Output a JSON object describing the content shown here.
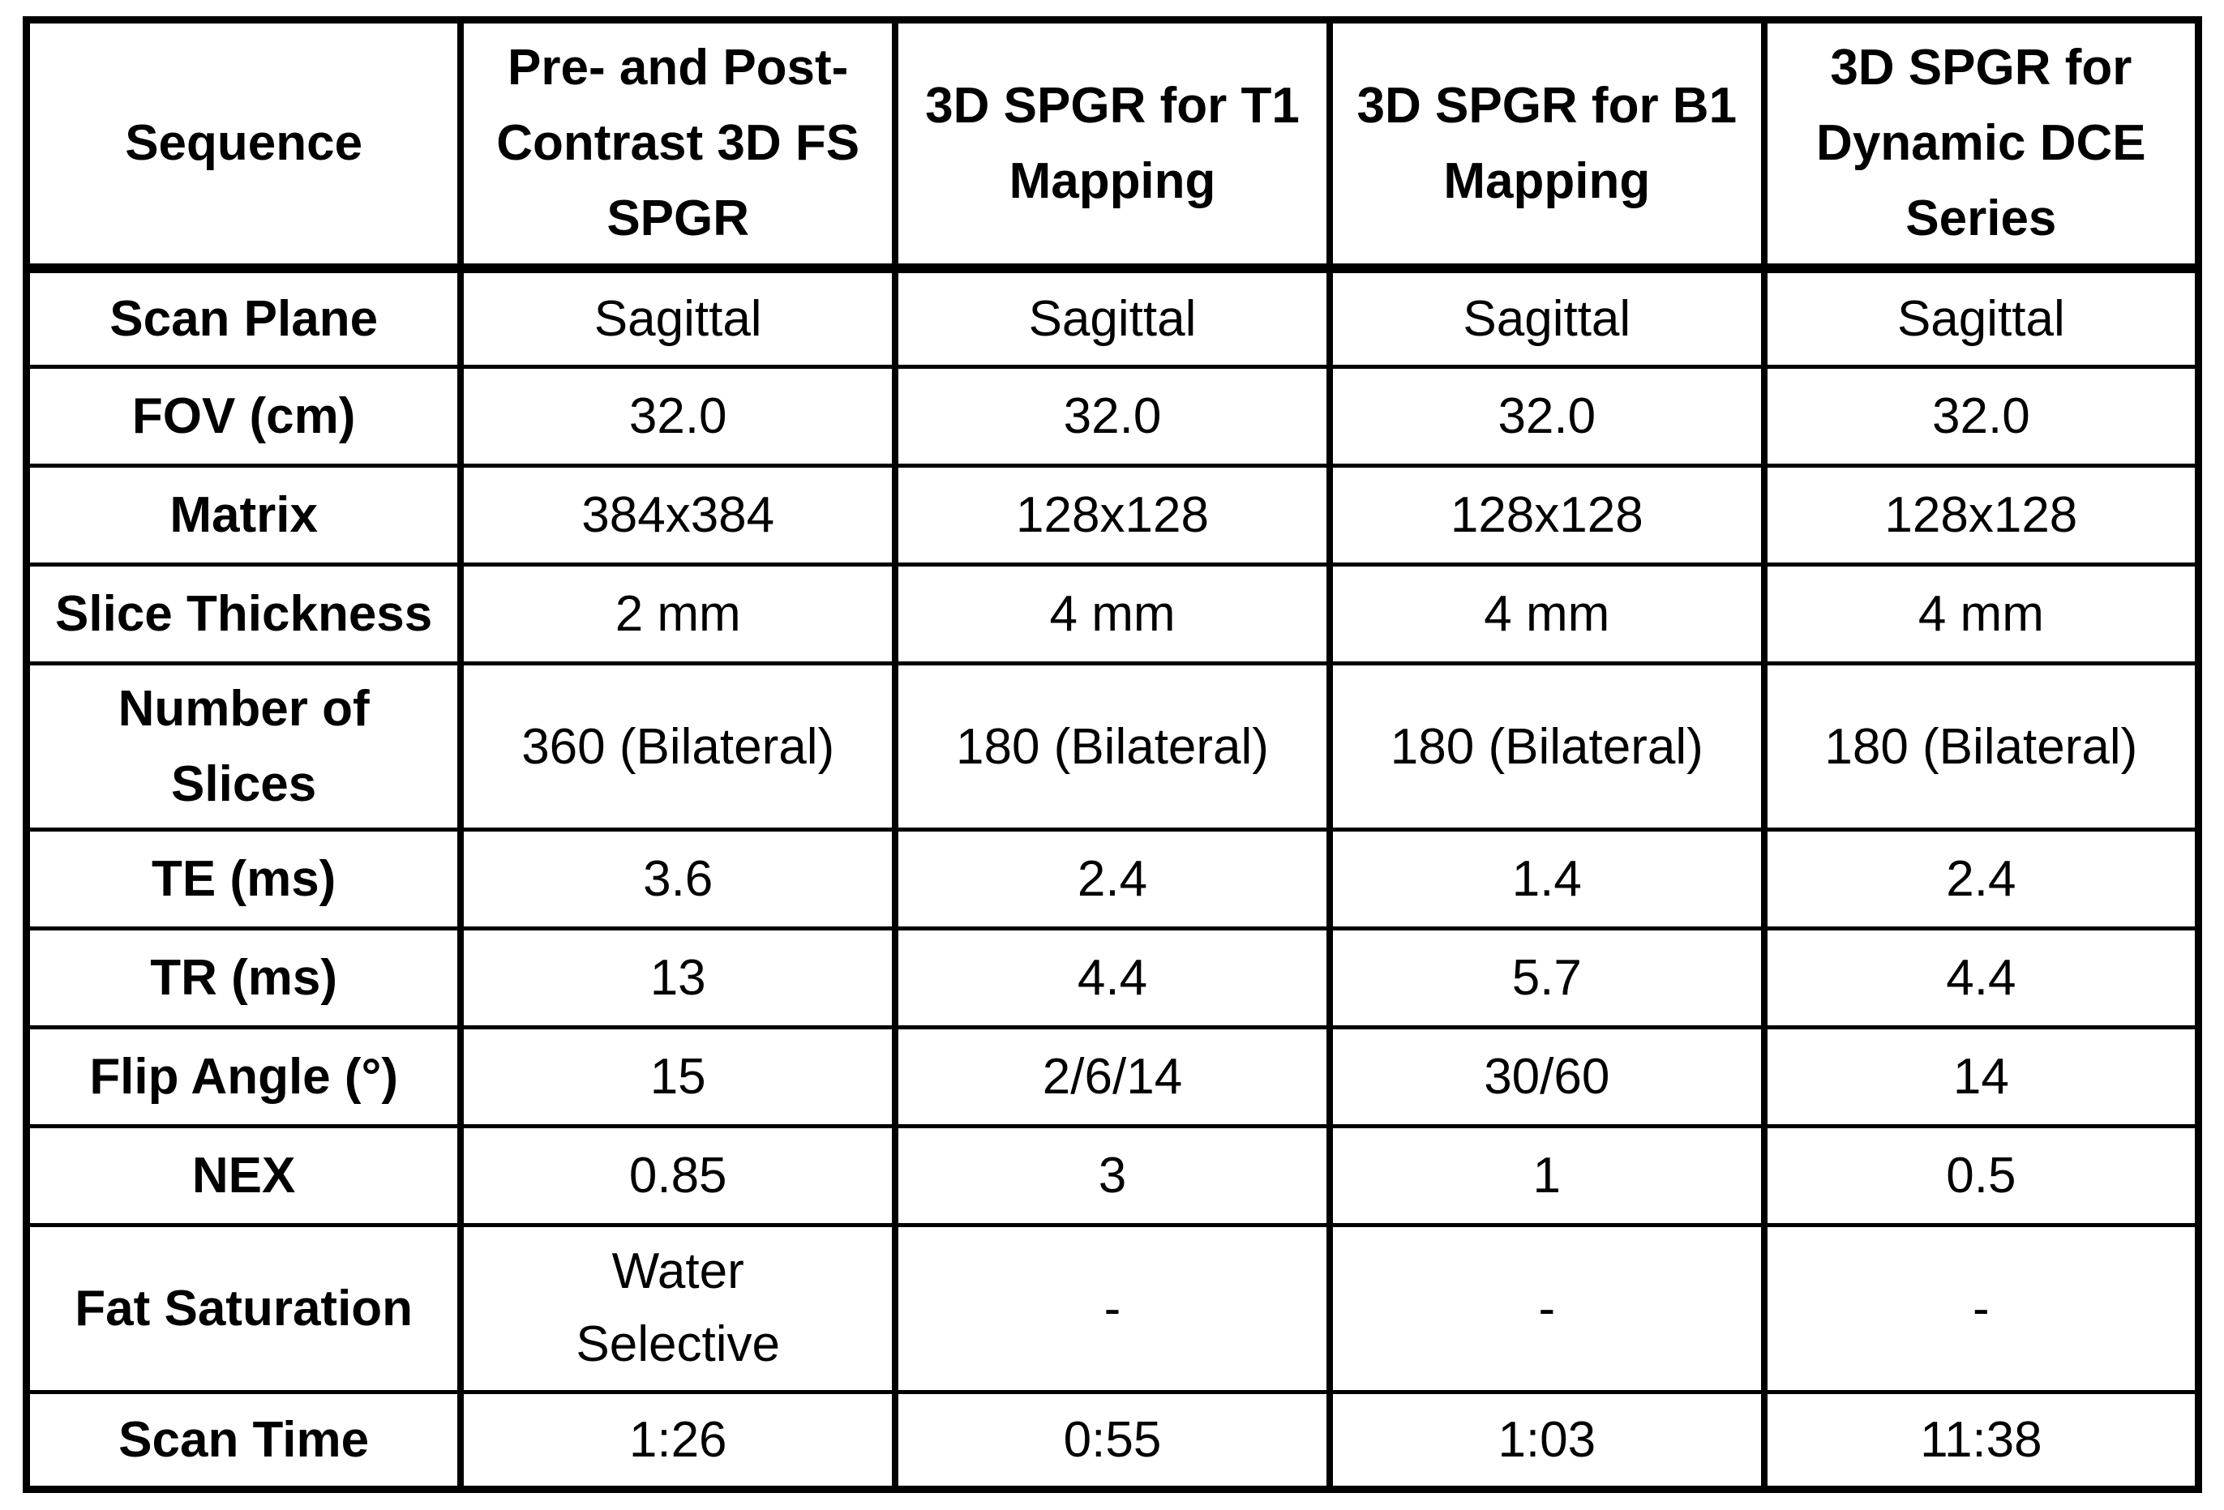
{
  "colors": {
    "background": "#ffffff",
    "border": "#000000",
    "text": "#000000"
  },
  "table": {
    "corner_label": "Sequence",
    "columns": [
      "Pre- and Post-Contrast 3D FS SPGR",
      "3D SPGR for T1 Mapping",
      "3D SPGR for B1 Mapping",
      "3D SPGR for Dynamic DCE Series"
    ],
    "rows": [
      {
        "label": "Scan Plane",
        "values": [
          "Sagittal",
          "Sagittal",
          "Sagittal",
          "Sagittal"
        ]
      },
      {
        "label": "FOV (cm)",
        "values": [
          "32.0",
          "32.0",
          "32.0",
          "32.0"
        ]
      },
      {
        "label": "Matrix",
        "values": [
          "384x384",
          "128x128",
          "128x128",
          "128x128"
        ]
      },
      {
        "label": "Slice Thickness",
        "values": [
          "2 mm",
          "4 mm",
          "4 mm",
          "4 mm"
        ]
      },
      {
        "label": "Number of Slices",
        "values": [
          "360 (Bilateral)",
          "180 (Bilateral)",
          "180 (Bilateral)",
          "180 (Bilateral)"
        ]
      },
      {
        "label": "TE (ms)",
        "values": [
          "3.6",
          "2.4",
          "1.4",
          "2.4"
        ]
      },
      {
        "label": "TR (ms)",
        "values": [
          "13",
          "4.4",
          "5.7",
          "4.4"
        ]
      },
      {
        "label": "Flip Angle (°)",
        "values": [
          "15",
          "2/6/14",
          "30/60",
          "14"
        ]
      },
      {
        "label": "NEX",
        "values": [
          "0.85",
          "3",
          "1",
          "0.5"
        ]
      },
      {
        "label": "Fat Saturation",
        "values": [
          "Water Selective",
          "-",
          "-",
          "-"
        ]
      },
      {
        "label": "Scan Time",
        "values": [
          "1:26",
          "0:55",
          "1:03",
          "11:38"
        ]
      }
    ]
  },
  "chart_data": {
    "type": "table",
    "title": "",
    "columns": [
      "Sequence",
      "Pre- and Post-Contrast 3D FS SPGR",
      "3D SPGR for T1 Mapping",
      "3D SPGR for B1 Mapping",
      "3D SPGR for Dynamic DCE Series"
    ],
    "rows": [
      [
        "Scan Plane",
        "Sagittal",
        "Sagittal",
        "Sagittal",
        "Sagittal"
      ],
      [
        "FOV (cm)",
        "32.0",
        "32.0",
        "32.0",
        "32.0"
      ],
      [
        "Matrix",
        "384x384",
        "128x128",
        "128x128",
        "128x128"
      ],
      [
        "Slice Thickness",
        "2 mm",
        "4 mm",
        "4 mm",
        "4 mm"
      ],
      [
        "Number of Slices",
        "360 (Bilateral)",
        "180 (Bilateral)",
        "180 (Bilateral)",
        "180 (Bilateral)"
      ],
      [
        "TE (ms)",
        "3.6",
        "2.4",
        "1.4",
        "2.4"
      ],
      [
        "TR (ms)",
        "13",
        "4.4",
        "5.7",
        "4.4"
      ],
      [
        "Flip Angle (°)",
        "15",
        "2/6/14",
        "30/60",
        "14"
      ],
      [
        "NEX",
        "0.85",
        "3",
        "1",
        "0.5"
      ],
      [
        "Fat Saturation",
        "Water Selective",
        "-",
        "-",
        "-"
      ],
      [
        "Scan Time",
        "1:26",
        "0:55",
        "1:03",
        "11:38"
      ]
    ]
  }
}
